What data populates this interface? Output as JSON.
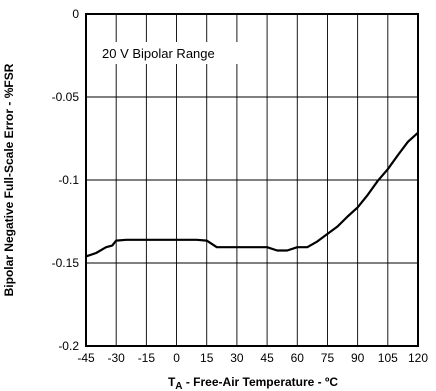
{
  "chart_data": {
    "type": "line",
    "title": "",
    "annotation": "20 V Bipolar Range",
    "xlabel_main": "T",
    "xlabel_sub": "A",
    "xlabel_rest": " - Free-Air Temperature - ºC",
    "ylabel": "Bipolar Negative Full-Scale Error - %FSR",
    "xlim": [
      -45,
      120
    ],
    "ylim": [
      -0.2,
      0
    ],
    "xticks": [
      -45,
      -30,
      -15,
      0,
      15,
      30,
      45,
      60,
      75,
      90,
      105,
      120
    ],
    "xtick_labels": [
      "-45",
      "-30",
      "-15",
      "0",
      "15",
      "30",
      "45",
      "60",
      "75",
      "90",
      "105",
      "120"
    ],
    "yticks": [
      0,
      -0.05,
      -0.1,
      -0.15,
      -0.2
    ],
    "ytick_labels": [
      "0",
      "-0.05",
      "-0.1",
      "-0.15",
      "-0.2"
    ],
    "grid": true,
    "series": [
      {
        "x": [
          -45,
          -40,
          -35,
          -32,
          -30,
          -25,
          -20,
          -10,
          0,
          10,
          15,
          20,
          30,
          40,
          45,
          50,
          55,
          60,
          65,
          70,
          75,
          80,
          85,
          90,
          95,
          100,
          105,
          110,
          115,
          120
        ],
        "y": [
          -0.146,
          -0.144,
          -0.1405,
          -0.1395,
          -0.1365,
          -0.136,
          -0.136,
          -0.136,
          -0.136,
          -0.136,
          -0.1365,
          -0.1405,
          -0.1405,
          -0.1405,
          -0.1405,
          -0.1425,
          -0.1425,
          -0.1405,
          -0.1405,
          -0.137,
          -0.1325,
          -0.128,
          -0.122,
          -0.1165,
          -0.109,
          -0.1005,
          -0.0935,
          -0.085,
          -0.077,
          -0.0715
        ]
      }
    ]
  }
}
